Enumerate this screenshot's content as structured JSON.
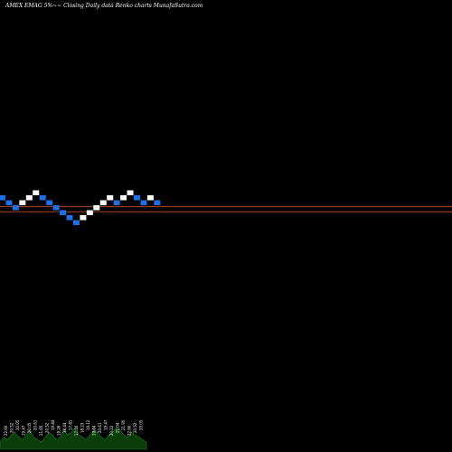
{
  "header": {
    "title": "AMEX  EMAG 5%~~  Closing Daily data  Renko  charts MunafaSutra.com"
  },
  "colors": {
    "background": "#000000",
    "up_brick": "#ffffff",
    "down_brick": "#1f6fe6",
    "reference_line": "#c0501f",
    "volume_area": "#0b3d0b",
    "volume_edge": "#1e7d1e"
  },
  "chart_data": {
    "type": "renko",
    "title": "AMEX  EMAG 5%~~  Closing Daily data  Renko  charts MunafaSutra.com",
    "bricks": [
      {
        "direction": "down",
        "level": 0
      },
      {
        "direction": "down",
        "level": -1
      },
      {
        "direction": "down",
        "level": -2
      },
      {
        "direction": "up",
        "level": -1
      },
      {
        "direction": "up",
        "level": 0
      },
      {
        "direction": "up",
        "level": 1
      },
      {
        "direction": "down",
        "level": 0
      },
      {
        "direction": "down",
        "level": -1
      },
      {
        "direction": "down",
        "level": -2
      },
      {
        "direction": "down",
        "level": -3
      },
      {
        "direction": "down",
        "level": -4
      },
      {
        "direction": "down",
        "level": -5
      },
      {
        "direction": "up",
        "level": -4
      },
      {
        "direction": "up",
        "level": -3
      },
      {
        "direction": "up",
        "level": -2
      },
      {
        "direction": "up",
        "level": -1
      },
      {
        "direction": "up",
        "level": 0
      },
      {
        "direction": "down",
        "level": -1
      },
      {
        "direction": "up",
        "level": 0
      },
      {
        "direction": "up",
        "level": 1
      },
      {
        "direction": "down",
        "level": 0
      },
      {
        "direction": "down",
        "level": -1
      },
      {
        "direction": "up",
        "level": 0
      },
      {
        "direction": "down",
        "level": -1
      }
    ],
    "reference_lines": [
      -2,
      -3
    ],
    "brick_labels": [
      "22.60",
      "20.52",
      "20.05",
      "19.47",
      "20.05",
      "20.61",
      "21.65",
      "20.52",
      "19.84",
      "19.26",
      "18.44",
      "17.81",
      "17.16",
      "18.23",
      "19.12",
      "19.84",
      "20.61",
      "19.47",
      "20.22",
      "21.04",
      "21.95",
      "22.60",
      "20.52",
      "20.05"
    ],
    "volume": [
      3,
      5,
      4,
      6,
      7,
      5,
      4,
      6,
      8,
      5,
      4,
      3,
      5,
      7,
      6,
      4,
      5,
      8,
      6,
      7,
      9,
      6,
      5,
      4,
      6,
      8,
      7,
      5,
      4,
      6,
      7,
      9,
      8,
      6,
      5,
      7,
      6,
      5,
      4,
      3
    ]
  }
}
